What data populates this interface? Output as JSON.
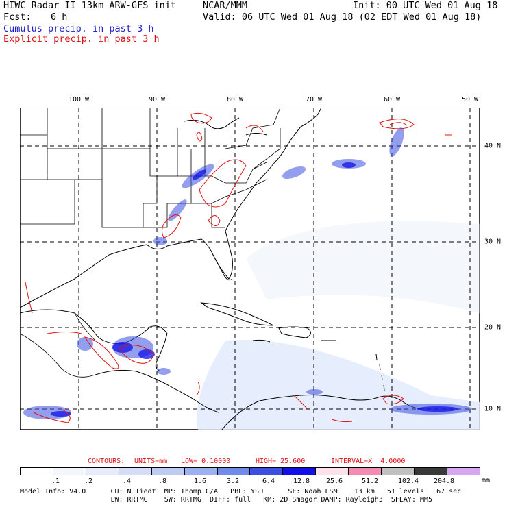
{
  "header": {
    "title": "HIWC Radar II 13km ARW-GFS init",
    "org": "NCAR/MMM",
    "init": "Init: 00 UTC Wed 01 Aug 18",
    "fcst_label": "Fcst:",
    "fcst_value": "6 h",
    "valid": "Valid: 06 UTC Wed 01 Aug 18 (02 EDT Wed 01 Aug 18)",
    "legend_cumulus": "Cumulus precip. in past 3 h",
    "legend_explicit": "Explicit precip. in past 3 h"
  },
  "colors": {
    "cumulus": "#1c1ccc",
    "explicit": "#e01010",
    "ocean_shade": "#dce6fa"
  },
  "map": {
    "lon_labels": [
      "100 W",
      "90 W",
      "80 W",
      "70 W",
      "60 W",
      "50 W"
    ],
    "lat_labels": [
      "40 N",
      "30 N",
      "20 N",
      "10 N"
    ]
  },
  "contour_info": {
    "contours": "CONTOURS:",
    "units": "UNITS=mm",
    "low": "LOW= 0.10000",
    "high": "HIGH= 25.600",
    "interval": "INTERVAL=X  4.0000"
  },
  "colorbar": {
    "colors": [
      "#ffffff",
      "#f3f6fd",
      "#e6ecfb",
      "#d3ddf8",
      "#bcccf5",
      "#9cb2f0",
      "#6f8ae8",
      "#3b4fe0",
      "#1010e6",
      "#fbe2ea",
      "#f28cb3",
      "#c0c0c0",
      "#3a3a3a",
      "#d6a6f2"
    ],
    "labels": [
      ".1",
      ".2",
      ".4",
      ".8",
      "1.6",
      "3.2",
      "6.4",
      "12.8",
      "25.6",
      "51.2",
      "102.4",
      "204.8"
    ],
    "unit": "mm"
  },
  "footer": {
    "line1": "Model Info: V4.0      CU: N_Tiedt  MP: Thomp C/A   PBL: YSU      SF: Noah LSM    13 km   51 levels   67 sec",
    "line2": "                      LW: RRTMG    SW: RRTMG  DIFF: full   KM: 2D Smagor DAMP: Rayleigh3  SFLAY: MM5"
  }
}
